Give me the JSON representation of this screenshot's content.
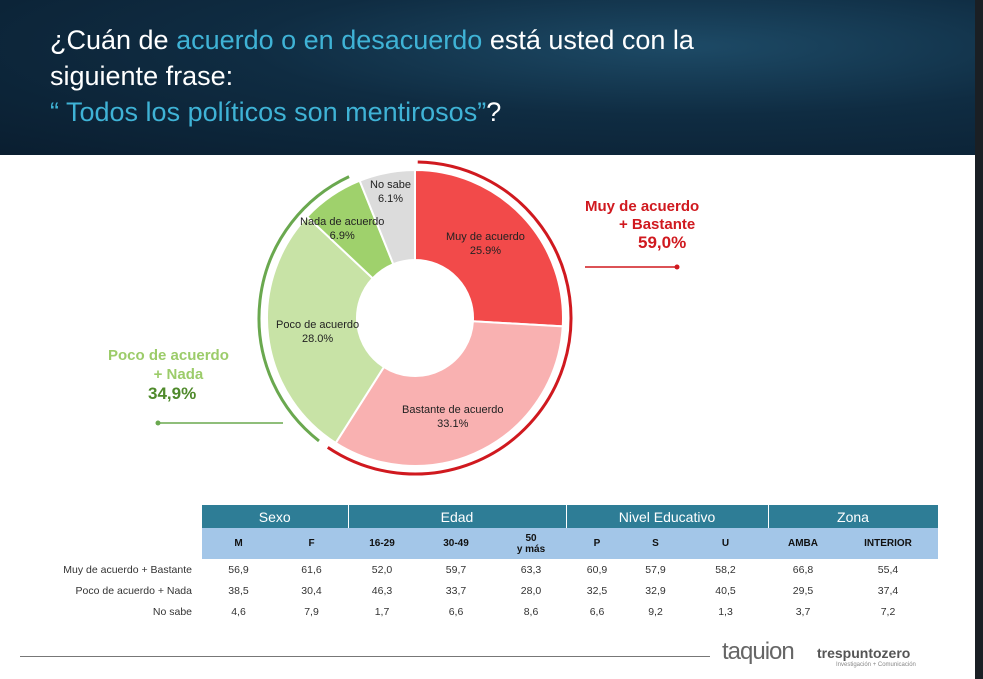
{
  "header": {
    "title_part1": "¿Cuán de ",
    "title_hl": "acuerdo o en desacuerdo",
    "title_part2": " está usted con la",
    "title_line2": "siguiente frase:",
    "title_line3_hl": "“ Todos los políticos son mentirosos”",
    "title_line3_end": "?"
  },
  "chart_data": {
    "type": "pie",
    "title": "",
    "slices": [
      {
        "label": "Muy de acuerdo",
        "value": 25.9,
        "text": "25.9%",
        "color": "#f24a4a"
      },
      {
        "label": "Bastante de acuerdo",
        "value": 33.1,
        "text": "33.1%",
        "color": "#f9b1b1"
      },
      {
        "label": "Poco de acuerdo",
        "value": 28.0,
        "text": "28.0%",
        "color": "#c8e3a6"
      },
      {
        "label": "Nada de acuerdo",
        "value": 6.9,
        "text": "6.9%",
        "color": "#9fd16c"
      },
      {
        "label": "No sabe",
        "value": 6.1,
        "text": "6.1%",
        "color": "#dcdcdc"
      }
    ]
  },
  "callouts": {
    "agree": {
      "line1": "Muy de acuerdo",
      "line2": "+ Bastante",
      "value": "59,0%",
      "color": "#d0191f"
    },
    "disagree": {
      "line1": "Poco de acuerdo",
      "line2": "+ Nada",
      "value": "34,9%",
      "color": "#9ccc6a",
      "value_color": "#4f8a2b"
    }
  },
  "table": {
    "groups": [
      "Sexo",
      "Edad",
      "Nivel Educativo",
      "Zona"
    ],
    "columns": [
      "M",
      "F",
      "16-29",
      "30-49",
      "50\ny más",
      "P",
      "S",
      "U",
      "AMBA",
      "INTERIOR"
    ],
    "rows": [
      {
        "label": "Muy de acuerdo +  Bastante",
        "values": [
          "56,9",
          "61,6",
          "52,0",
          "59,7",
          "63,3",
          "60,9",
          "57,9",
          "58,2",
          "66,8",
          "55,4"
        ]
      },
      {
        "label": "Poco de acuerdo +  Nada",
        "values": [
          "38,5",
          "30,4",
          "46,3",
          "33,7",
          "28,0",
          "32,5",
          "32,9",
          "40,5",
          "29,5",
          "37,4"
        ]
      },
      {
        "label": "No sabe",
        "values": [
          "4,6",
          "7,9",
          "1,7",
          "6,6",
          "8,6",
          "6,6",
          "9,2",
          "1,3",
          "3,7",
          "7,2"
        ]
      }
    ]
  },
  "footer": {
    "logo1": "taquion",
    "logo2": "trespuntozero",
    "logo2_sub": "Investigación + Comunicación"
  }
}
